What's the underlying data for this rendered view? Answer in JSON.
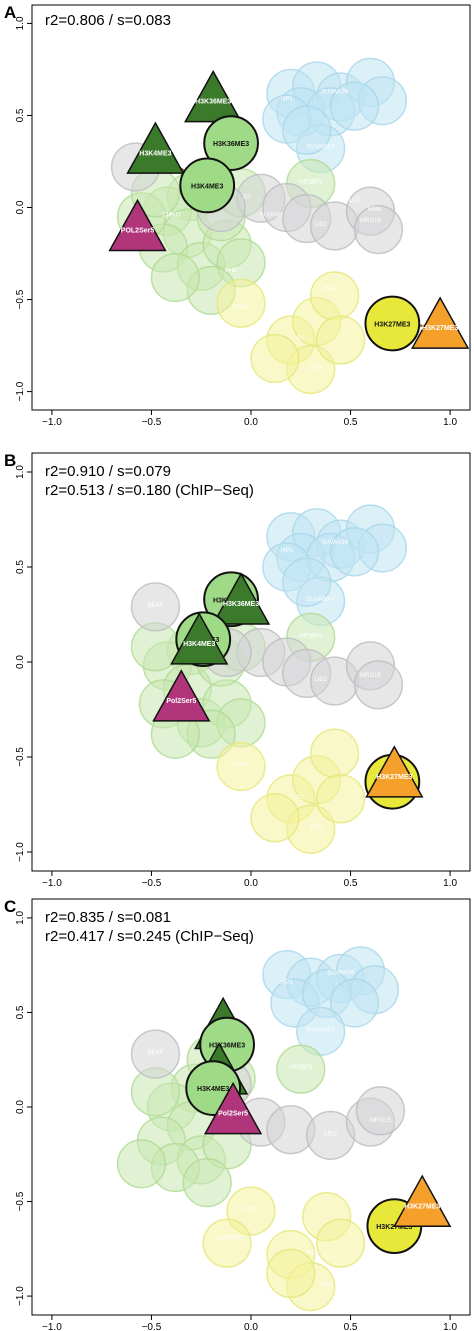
{
  "colors": {
    "blue_cloud": "#bfe3f2",
    "blue_edge": "#a9d7ea",
    "green_cloud": "#c8e8b0",
    "green_edge": "#aedb92",
    "gray_cloud": "#d4d4d6",
    "gray_edge": "#bdbdc0",
    "yellow_cloud": "#f2f29a",
    "yellow_edge": "#e6e67a",
    "dark_green": "#3c7a2b",
    "light_green": "#9fdb86",
    "magenta": "#b0357a",
    "orange": "#f5a02a",
    "yellow": "#e8e83a",
    "link": "#a24a2a"
  },
  "chart_data": [
    {
      "panel": "A",
      "type": "scatter",
      "stats": [
        "r2=0.806 / s=0.083"
      ],
      "xlim": [
        -1.1,
        1.1
      ],
      "ylim": [
        -1.1,
        1.1
      ],
      "xticks": [
        "−1.0",
        "−0.5",
        "0.0",
        "0.5",
        "1.0"
      ],
      "xtick_values": [
        -1.0,
        -0.5,
        0.0,
        0.5,
        1.0
      ],
      "yticks": [
        "1.0",
        "0.5",
        "0.0",
        "−0.5",
        "−1.0"
      ],
      "ytick_values": [
        1.0,
        0.5,
        0.0,
        -0.5,
        -1.0
      ],
      "background_labels": [
        {
          "text": "SUVAR39",
          "x": 0.42,
          "y": 0.62
        },
        {
          "text": "HP1",
          "x": 0.18,
          "y": 0.58
        },
        {
          "text": "SUVAR3-7",
          "x": 0.35,
          "y": 0.32
        },
        {
          "text": "HP1BP3",
          "x": 0.3,
          "y": 0.13
        },
        {
          "text": "LOT",
          "x": 0.52,
          "y": 0.03
        },
        {
          "text": "D1",
          "x": -0.02,
          "y": 0.05
        },
        {
          "text": "BRM",
          "x": 0.62,
          "y": -0.02
        },
        {
          "text": "MRG15",
          "x": 0.6,
          "y": -0.08
        },
        {
          "text": "LID2",
          "x": 0.35,
          "y": -0.1
        },
        {
          "text": "SU(HW)",
          "x": 0.1,
          "y": -0.05
        },
        {
          "text": "CHRO",
          "x": -0.4,
          "y": -0.05
        },
        {
          "text": "PHD",
          "x": -0.1,
          "y": -0.35
        },
        {
          "text": "DSP1",
          "x": -0.05,
          "y": -0.55
        },
        {
          "text": "PHO",
          "x": 0.4,
          "y": -0.45
        },
        {
          "text": "PC",
          "x": 0.25,
          "y": -0.72
        },
        {
          "text": "E(Z)",
          "x": 0.33,
          "y": -0.88
        }
      ],
      "markers": [
        {
          "label": "H3K36ME3",
          "shape": "triangle",
          "color": "dark_green",
          "x": -0.19,
          "y": 0.58
        },
        {
          "label": "H3K36ME3",
          "shape": "circle",
          "color": "light_green",
          "x": -0.1,
          "y": 0.35
        },
        {
          "label": "H3K4ME3",
          "shape": "triangle",
          "color": "dark_green",
          "x": -0.48,
          "y": 0.3
        },
        {
          "label": "H3K4ME3",
          "shape": "circle",
          "color": "light_green",
          "x": -0.22,
          "y": 0.12
        },
        {
          "label": "POL2Ser5",
          "shape": "triangle",
          "color": "magenta",
          "x": -0.57,
          "y": -0.12
        },
        {
          "label": "H3K27ME3",
          "shape": "circle",
          "color": "yellow",
          "x": 0.71,
          "y": -0.63
        },
        {
          "label": "H3K27ME3",
          "shape": "triangle",
          "color": "orange",
          "x": 0.95,
          "y": -0.65
        }
      ],
      "links": [
        [
          0,
          1
        ],
        [
          2,
          3
        ],
        [
          5,
          6
        ]
      ]
    },
    {
      "panel": "B",
      "type": "scatter",
      "stats": [
        "r2=0.910 / s=0.079",
        "r2=0.513 / s=0.180 (ChIP−Seq)"
      ],
      "xlim": [
        -1.1,
        1.1
      ],
      "ylim": [
        -1.1,
        1.1
      ],
      "xticks": [
        "−1.0",
        "−0.5",
        "0.0",
        "0.5",
        "1.0"
      ],
      "xtick_values": [
        -1.0,
        -0.5,
        0.0,
        0.5,
        1.0
      ],
      "yticks": [
        "1.0",
        "0.5",
        "0.0",
        "−0.5",
        "−1.0"
      ],
      "ytick_values": [
        1.0,
        0.5,
        0.0,
        -0.5,
        -1.0
      ],
      "background_labels": [
        {
          "text": "SUVAR39",
          "x": 0.42,
          "y": 0.62
        },
        {
          "text": "HP1",
          "x": 0.18,
          "y": 0.58
        },
        {
          "text": "SUVAR3-7",
          "x": 0.35,
          "y": 0.32
        },
        {
          "text": "HP1BP3",
          "x": 0.3,
          "y": 0.13
        },
        {
          "text": "BEAF",
          "x": -0.48,
          "y": 0.29
        },
        {
          "text": "LID2",
          "x": 0.35,
          "y": -0.1
        },
        {
          "text": "MRG15",
          "x": 0.6,
          "y": -0.08
        },
        {
          "text": "DSP1",
          "x": -0.05,
          "y": -0.55
        },
        {
          "text": "PC",
          "x": 0.25,
          "y": -0.72
        },
        {
          "text": "E(Z)",
          "x": 0.33,
          "y": -0.88
        }
      ],
      "markers": [
        {
          "label": "H3K36ME3",
          "shape": "circle",
          "color": "light_green",
          "x": -0.1,
          "y": 0.33
        },
        {
          "label": "H3K36ME3",
          "shape": "triangle",
          "color": "dark_green",
          "x": -0.05,
          "y": 0.31
        },
        {
          "label": "H3K4ME3",
          "shape": "circle",
          "color": "light_green",
          "x": -0.24,
          "y": 0.12
        },
        {
          "label": "H3K4ME3",
          "shape": "triangle",
          "color": "dark_green",
          "x": -0.26,
          "y": 0.1
        },
        {
          "label": "Pol2Ser5",
          "shape": "triangle",
          "color": "magenta",
          "x": -0.35,
          "y": -0.2
        },
        {
          "label": "H3K27ME3",
          "shape": "circle",
          "color": "yellow",
          "x": 0.71,
          "y": -0.63
        },
        {
          "label": "H3K27ME3",
          "shape": "triangle",
          "color": "orange",
          "x": 0.72,
          "y": -0.6
        }
      ],
      "links": []
    },
    {
      "panel": "C",
      "type": "scatter",
      "stats": [
        "r2=0.835 / s=0.081",
        "r2=0.417 / s=0.245 (ChIP−Seq)"
      ],
      "xlim": [
        -1.1,
        1.1
      ],
      "ylim": [
        -1.1,
        1.1
      ],
      "xticks": [
        "−1.0",
        "−0.5",
        "0.0",
        "0.5",
        "1.0"
      ],
      "xtick_values": [
        -1.0,
        -0.5,
        0.0,
        0.5,
        1.0
      ],
      "yticks": [
        "1.0",
        "0.5",
        "0.0",
        "−0.5",
        "−1.0"
      ],
      "ytick_values": [
        1.0,
        0.5,
        0.0,
        -0.5,
        -1.0
      ],
      "background_labels": [
        {
          "text": "SUVAR39",
          "x": 0.45,
          "y": 0.7
        },
        {
          "text": "HP1",
          "x": 0.18,
          "y": 0.65
        },
        {
          "text": "SUVAR3-7",
          "x": 0.35,
          "y": 0.4
        },
        {
          "text": "HP1BP3",
          "x": 0.25,
          "y": 0.2
        },
        {
          "text": "BEAF",
          "x": -0.48,
          "y": 0.28
        },
        {
          "text": "LID2",
          "x": 0.4,
          "y": -0.15
        },
        {
          "text": "MRG15",
          "x": 0.65,
          "y": -0.08
        },
        {
          "text": "DSP1",
          "x": 0.0,
          "y": -0.55
        },
        {
          "text": "H3K9ME3",
          "x": -0.1,
          "y": -0.7
        },
        {
          "text": "PC",
          "x": 0.3,
          "y": -0.78
        },
        {
          "text": "E(Z)",
          "x": 0.38,
          "y": -0.95
        }
      ],
      "markers": [
        {
          "label": "H3K36ME3",
          "shape": "triangle",
          "color": "dark_green",
          "x": -0.14,
          "y": 0.42
        },
        {
          "label": "H3K36ME3",
          "shape": "circle",
          "color": "light_green",
          "x": -0.12,
          "y": 0.33
        },
        {
          "label": "H3K4ME3",
          "shape": "triangle",
          "color": "dark_green",
          "x": -0.16,
          "y": 0.18
        },
        {
          "label": "H3K4ME3",
          "shape": "circle",
          "color": "light_green",
          "x": -0.19,
          "y": 0.1
        },
        {
          "label": "Pol2Ser5",
          "shape": "triangle",
          "color": "magenta",
          "x": -0.09,
          "y": -0.03
        },
        {
          "label": "H3K27ME3",
          "shape": "circle",
          "color": "yellow",
          "x": 0.72,
          "y": -0.63
        },
        {
          "label": "H3K27ME3",
          "shape": "triangle",
          "color": "orange",
          "x": 0.86,
          "y": -0.52
        }
      ],
      "links": [
        [
          5,
          6
        ]
      ]
    }
  ]
}
